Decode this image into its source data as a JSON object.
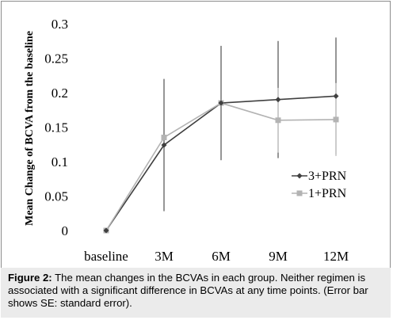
{
  "caption": {
    "label": "Figure 2:",
    "text": " The mean changes in the BCVAs in each group. Neither regimen is associated with a significant difference in BCVAs at any time points. (Error bar shows SE: standard error)."
  },
  "chart_data": {
    "type": "line",
    "title": "",
    "xlabel": "",
    "ylabel": "Mean Change of BCVA from the baseline",
    "categories": [
      "baseline",
      "3M",
      "6M",
      "9M",
      "12M"
    ],
    "ylim": [
      0,
      0.3
    ],
    "yticks": [
      "0",
      "0.05",
      "0.1",
      "0.15",
      "0.2",
      "0.25",
      "0.3"
    ],
    "grid": false,
    "legend_position": "right",
    "series": [
      {
        "name": "3+PRN",
        "color": "#404040",
        "marker": "diamond",
        "values": [
          0,
          0.124,
          0.185,
          0.19,
          0.195
        ],
        "error": [
          0,
          0.096,
          0.083,
          0.085,
          0.085
        ]
      },
      {
        "name": "1+PRN",
        "color": "#b3b3b3",
        "marker": "square",
        "values": [
          0,
          0.135,
          0.185,
          0.16,
          0.161
        ],
        "error": [
          0,
          0,
          0,
          0.047,
          0.053
        ]
      }
    ]
  }
}
